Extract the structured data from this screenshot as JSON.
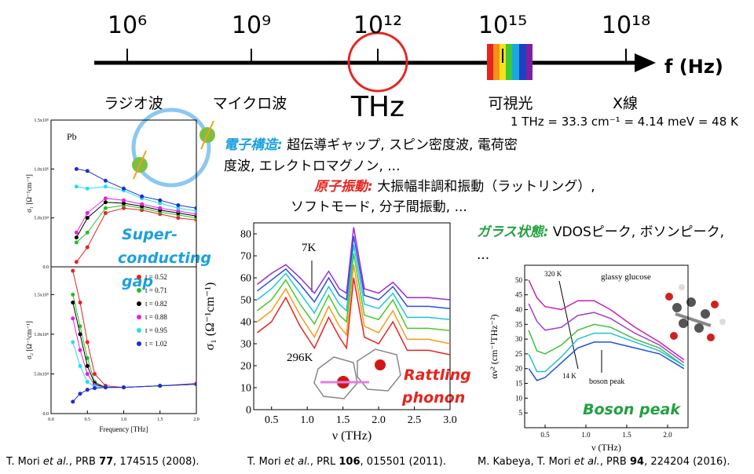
{
  "timeline": {
    "ticks": [
      "10⁶",
      "10⁹",
      "10¹²",
      "10¹⁵",
      "10¹⁸"
    ],
    "axis_label": "f (Hz)",
    "bands": [
      "ラジオ波",
      "マイクロ波",
      "THz",
      "可視光",
      "X線"
    ],
    "conversion": "1 THz = 33.3 cm⁻¹ = 4.14 meV = 48 K"
  },
  "topics": [
    {
      "label": "電子構造:",
      "lines": [
        " 超伝導ギャップ, スピン密度波, 電荷密",
        "度波, エレクトロマグノン, ..."
      ]
    },
    {
      "label": "原子振動:",
      "lines": [
        " 大振幅非調和振動（ラットリング）,",
        "ソフトモード, 分子間振動, ..."
      ]
    },
    {
      "label": "ガラス状態:",
      "lines": [
        " VDOSピーク, ボソンピーク,",
        "..."
      ]
    }
  ],
  "panels": {
    "pb_sigma1": {
      "ylabel": "σ₁ [Ω⁻¹cm⁻¹]",
      "label": "Pb",
      "xlim": [
        0,
        2
      ],
      "ylim": [
        0,
        150000
      ],
      "yticks": [
        {
          "value": 0,
          "label": "0.0"
        },
        {
          "value": 50000,
          "label": "5.0x10⁴"
        },
        {
          "value": 100000,
          "label": "1.0x10⁵"
        },
        {
          "value": 150000,
          "label": "1.5x10⁵"
        }
      ],
      "x": [
        0.35,
        0.5,
        0.75,
        1.0,
        1.25,
        1.5,
        1.75,
        2.0
      ],
      "series": [
        {
          "color": "#e8231d",
          "values": [
            5000,
            20000,
            55000,
            60000,
            58000,
            54000,
            50000,
            48000
          ]
        },
        {
          "color": "#22c02a",
          "values": [
            25000,
            35000,
            60000,
            63000,
            60000,
            56000,
            53000,
            50000
          ]
        },
        {
          "color": "#000000",
          "values": [
            30000,
            50000,
            66000,
            65000,
            62000,
            58000,
            55000,
            52000
          ]
        },
        {
          "color": "#e81fe0",
          "values": [
            35000,
            55000,
            70000,
            68000,
            64000,
            60000,
            57000,
            54000
          ]
        },
        {
          "color": "#1ee0f0",
          "values": [
            82000,
            80000,
            82000,
            78000,
            70000,
            65000,
            60000,
            57000
          ]
        },
        {
          "color": "#1a2fd0",
          "values": [
            100000,
            98000,
            88000,
            80000,
            72000,
            68000,
            63000,
            60000
          ]
        }
      ]
    },
    "pb_sigma2": {
      "ylabel": "σ₂ [Ω⁻¹cm⁻¹]",
      "xlabel": "Frequency [THz]",
      "xlim": [
        0,
        2
      ],
      "ylim": [
        0,
        185000
      ],
      "xticks": [
        {
          "value": 0,
          "label": "0.0"
        },
        0.5,
        {
          "value": 1,
          "label": "1.0"
        },
        1.5,
        {
          "value": 2,
          "label": "2.0"
        }
      ],
      "yticks": [
        {
          "value": 0,
          "label": "0.0"
        },
        {
          "value": 50000,
          "label": "5.0x10⁴"
        },
        {
          "value": 100000,
          "label": "1.0x10⁵"
        },
        {
          "value": 150000,
          "label": "1.5x10⁵"
        }
      ],
      "x": [
        0.3,
        0.4,
        0.5,
        0.6,
        0.75,
        1.0,
        1.5,
        2.0
      ],
      "series": [
        {
          "name": "t = 0.52",
          "color": "#e8231d",
          "values": [
            180000,
            140000,
            90000,
            50000,
            35000,
            33000,
            35000,
            38000
          ]
        },
        {
          "name": "t = 0.71",
          "color": "#22c02a",
          "values": [
            150000,
            110000,
            70000,
            40000,
            33000,
            33000,
            35000,
            37000
          ]
        },
        {
          "name": "t = 0.82",
          "color": "#000000",
          "values": [
            140000,
            100000,
            60000,
            38000,
            33000,
            33000,
            35000,
            37000
          ]
        },
        {
          "name": "t = 0.88",
          "color": "#e81fe0",
          "values": [
            120000,
            80000,
            50000,
            36000,
            33000,
            33000,
            35000,
            37000
          ]
        },
        {
          "name": "t = 0.95",
          "color": "#1ee0f0",
          "values": [
            90000,
            60000,
            40000,
            34000,
            33000,
            33000,
            35000,
            37000
          ]
        },
        {
          "name": "t = 1.02",
          "color": "#1a2fd0",
          "values": [
            15000,
            25000,
            30000,
            32000,
            33000,
            33000,
            35000,
            37000
          ]
        }
      ]
    },
    "rattling": {
      "ylabel": "σ₁ (Ω⁻¹cm⁻¹)",
      "xlabel": "ν (THz)",
      "annotations": [
        "7K",
        "296K",
        "Rattling",
        "phonon"
      ],
      "xlim": [
        0.25,
        3.0
      ],
      "ylim": [
        0,
        85
      ],
      "xticks": [
        0.5,
        {
          "value": 1,
          "label": "1.0"
        },
        1.5,
        {
          "value": 2,
          "label": "2.0"
        },
        2.5,
        {
          "value": 3,
          "label": "3.0"
        }
      ],
      "yticks": [
        0,
        10,
        20,
        30,
        40,
        50,
        60,
        70,
        80
      ],
      "x": [
        0.3,
        0.5,
        0.7,
        0.9,
        1.1,
        1.3,
        1.45,
        1.55,
        1.65,
        1.8,
        2.0,
        2.2,
        2.4,
        2.7,
        3.0
      ],
      "series": [
        {
          "color": "#e8231d",
          "values": [
            35,
            40,
            51,
            38,
            28,
            42,
            33,
            28,
            60,
            33,
            30,
            40,
            27,
            27,
            25
          ]
        },
        {
          "color": "#f59a1a",
          "values": [
            40,
            45,
            55,
            43,
            33,
            47,
            38,
            34,
            66,
            38,
            35,
            45,
            32,
            32,
            30
          ]
        },
        {
          "color": "#4cc82a",
          "values": [
            45,
            50,
            59,
            48,
            39,
            52,
            43,
            40,
            71,
            43,
            41,
            50,
            37,
            37,
            36
          ]
        },
        {
          "color": "#18c8d8",
          "values": [
            50,
            55,
            62,
            53,
            44,
            56,
            48,
            45,
            75,
            48,
            46,
            53,
            42,
            42,
            41
          ]
        },
        {
          "color": "#2850e0",
          "values": [
            54,
            59,
            64,
            57,
            49,
            60,
            52,
            50,
            79,
            52,
            50,
            56,
            47,
            47,
            46
          ]
        },
        {
          "color": "#9a2ae0",
          "values": [
            57,
            62,
            66,
            60,
            53,
            63,
            55,
            53,
            83,
            55,
            53,
            58,
            51,
            51,
            50
          ]
        }
      ]
    },
    "glass": {
      "ylabel": "αν² (cm⁻¹THz⁻²)",
      "xlabel": "ν (THz)",
      "annotations": [
        "320 K",
        "glassy glucose",
        "14 K",
        "boson peak",
        "Boson peak"
      ],
      "xlim": [
        0.25,
        2.25
      ],
      "ylim": [
        0,
        55
      ],
      "xticks": [
        0.5,
        {
          "value": 1,
          "label": "1.0"
        },
        1.5,
        {
          "value": 2,
          "label": "2.0"
        }
      ],
      "yticks": [
        5,
        10,
        15,
        20,
        25,
        30,
        35,
        40,
        45,
        50
      ],
      "x": [
        0.3,
        0.4,
        0.5,
        0.7,
        0.9,
        1.1,
        1.3,
        1.6,
        1.9,
        2.2
      ],
      "series": [
        {
          "color": "#c820b0",
          "values": [
            50,
            44,
            41,
            40,
            43,
            43,
            40,
            34,
            29,
            23
          ]
        },
        {
          "color": "#a040d0",
          "values": [
            42,
            36,
            33,
            34,
            38,
            39,
            37,
            32,
            28,
            22
          ]
        },
        {
          "color": "#40c040",
          "values": [
            33,
            26,
            25,
            28,
            33,
            35,
            34,
            30,
            27,
            21
          ]
        },
        {
          "color": "#20c0d0",
          "values": [
            25,
            19,
            19,
            24,
            30,
            32,
            32,
            29,
            26,
            21
          ]
        },
        {
          "color": "#2050e0",
          "values": [
            20,
            16,
            17,
            22,
            27,
            29,
            29,
            27,
            25,
            20
          ]
        }
      ]
    }
  },
  "sc_gap": [
    "Super-",
    "conducting",
    "gap"
  ],
  "citations": [
    [
      "T. Mori ",
      "et al.",
      ", PRB ",
      "77",
      ", 174515 (2008)."
    ],
    [
      "T. Mori ",
      "et al.",
      ", PRL ",
      "106",
      ", 015501 (2011)."
    ],
    [
      "M. Kabeya, T. Mori ",
      "et al.",
      ", PRB ",
      "94",
      ", 224204 (2016)."
    ]
  ]
}
